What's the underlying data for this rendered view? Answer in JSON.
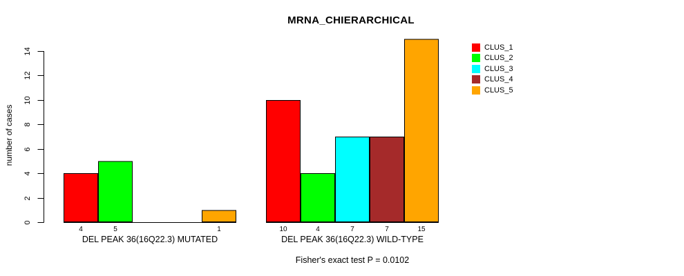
{
  "chart_data": {
    "type": "bar",
    "title": "MRNA_CHIERARCHICAL",
    "ylabel": "number of cases",
    "xlabel": "",
    "annotation": "Fisher's exact test P = 0.0102",
    "categories": [
      "DEL PEAK 36(16Q22.3) MUTATED",
      "DEL PEAK 36(16Q22.3) WILD-TYPE"
    ],
    "series": [
      {
        "name": "CLUS_1",
        "color": "#FF0000",
        "values": [
          4,
          10
        ]
      },
      {
        "name": "CLUS_2",
        "color": "#00FF00",
        "values": [
          5,
          4
        ]
      },
      {
        "name": "CLUS_3",
        "color": "#00FFFF",
        "values": [
          0,
          7
        ]
      },
      {
        "name": "CLUS_4",
        "color": "#A52A2A",
        "values": [
          0,
          7
        ]
      },
      {
        "name": "CLUS_5",
        "color": "#FFA500",
        "values": [
          1,
          15
        ]
      }
    ],
    "bar_value_labels": {
      "DEL PEAK 36(16Q22.3) MUTATED": [
        "4",
        "5",
        "",
        "",
        "1"
      ],
      "DEL PEAK 36(16Q22.3) WILD-TYPE": [
        "10",
        "4",
        "7",
        "7",
        "15"
      ]
    },
    "yticks": [
      0,
      2,
      4,
      6,
      8,
      10,
      12,
      14
    ],
    "ylim": [
      0,
      15
    ],
    "grid": "off",
    "legend_position": "right",
    "bar_border_color": "#000000",
    "background_color": "#FFFFFF"
  }
}
